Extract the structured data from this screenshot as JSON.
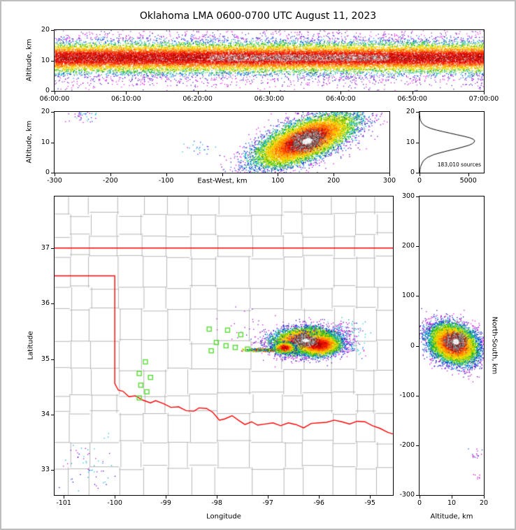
{
  "title": "Oklahoma LMA 0600-0700 UTC August 11, 2023",
  "axis_titles": {
    "altitude": "Altitude, km",
    "east_west": "East-West, km",
    "latitude": "Latitude",
    "longitude": "Longitude",
    "north_south": "North-South, km"
  },
  "annotations": {
    "sources": "183,010 sources"
  },
  "chart_data": {
    "type": "scatter",
    "title": "Oklahoma LMA 0600-0700 UTC August 11, 2023",
    "total_sources": 183010,
    "panels": {
      "time_height": {
        "kind": "density",
        "ylabel": "Altitude, km",
        "xlim": [
          0,
          3600
        ],
        "ylim": [
          0,
          20
        ],
        "xticks": {
          "values": [
            0,
            600,
            1200,
            1800,
            2400,
            3000,
            3600
          ],
          "labels": [
            "06:00:00",
            "06:10:00",
            "06:20:00",
            "06:30:00",
            "06:40:00",
            "06:50:00",
            "07:00:00"
          ]
        },
        "yticks": {
          "values": [
            0,
            10,
            20
          ],
          "labels": [
            "0",
            "10",
            "20"
          ]
        },
        "band": {
          "x0": 0,
          "x1": 3600,
          "cy": 11,
          "sy": 2.3,
          "fringe_sy": 4.2,
          "fringe_frac": 0.25,
          "n": 30000,
          "gray_t": [
            1300,
            2800
          ]
        }
      },
      "east_west_cross": {
        "kind": "density",
        "xlabel": "East-West, km",
        "ylabel": "Altitude, km",
        "xlim": [
          -300,
          300
        ],
        "ylim": [
          0,
          20
        ],
        "xticks": {
          "values": [
            -300,
            -200,
            -100,
            0,
            100,
            200,
            300
          ],
          "labels": [
            "-300",
            "-200",
            "-100",
            "",
            "100",
            "200",
            "300"
          ]
        },
        "yticks": {
          "values": [
            0,
            10,
            20
          ],
          "labels": [
            "0",
            "10",
            "20"
          ]
        },
        "blobs": [
          {
            "cx": 148,
            "cy": 10.8,
            "sx": 44,
            "sy": 4.3,
            "rho": 0.65,
            "n": 12000
          },
          {
            "cx": 152,
            "cy": 10.5,
            "sx": 13,
            "sy": 1.5,
            "rho": 0.3,
            "n": 1800,
            "kind": "gray"
          }
        ],
        "noise": [
          {
            "cx": -255,
            "cy": 18.5,
            "sx": 16,
            "sy": 0.8,
            "n": 30,
            "colors": [
              "#cc00cc",
              "#8800cc",
              "#0044ff",
              "#00cccc"
            ]
          },
          {
            "cx": -240,
            "cy": 19.6,
            "sx": 10,
            "sy": 0.3,
            "n": 10,
            "colors": [
              "#cc00cc",
              "#009fdd"
            ]
          },
          {
            "cx": -40,
            "cy": 8,
            "sx": 14,
            "sy": 1.3,
            "n": 22,
            "colors": [
              "#cc00cc",
              "#0044ff",
              "#00bbbb"
            ]
          },
          {
            "cx": 175,
            "cy": 19.3,
            "sx": 28,
            "sy": 0.5,
            "n": 16,
            "colors": [
              "#cc00cc",
              "#8800cc"
            ]
          }
        ]
      },
      "altitude_histogram": {
        "kind": "hist",
        "xlim": [
          0,
          6600
        ],
        "ylim": [
          0,
          20
        ],
        "xticks": {
          "values": [
            0,
            5000
          ],
          "labels": [
            "0",
            "5000"
          ]
        },
        "yticks": {
          "values": [
            0,
            10,
            20
          ],
          "labels": [
            "0",
            "10",
            "20"
          ]
        },
        "note": "183,010 sources",
        "profile": [
          [
            0,
            20
          ],
          [
            1,
            55
          ],
          [
            2,
            110
          ],
          [
            3,
            240
          ],
          [
            4,
            420
          ],
          [
            5,
            800
          ],
          [
            6,
            1500
          ],
          [
            7,
            2650
          ],
          [
            8,
            3950
          ],
          [
            9,
            5050
          ],
          [
            9.5,
            5400
          ],
          [
            10,
            5600
          ],
          [
            10.5,
            5660
          ],
          [
            11,
            5520
          ],
          [
            11.5,
            5150
          ],
          [
            12,
            4520
          ],
          [
            12.5,
            3820
          ],
          [
            13,
            3120
          ],
          [
            13.5,
            2420
          ],
          [
            14,
            1760
          ],
          [
            14.5,
            1210
          ],
          [
            15,
            810
          ],
          [
            15.5,
            520
          ],
          [
            16,
            330
          ],
          [
            16.5,
            210
          ],
          [
            17,
            130
          ],
          [
            17.5,
            80
          ],
          [
            18,
            45
          ],
          [
            19,
            12
          ],
          [
            20,
            3
          ]
        ]
      },
      "plan_view": {
        "kind": "map",
        "xlabel": "Longitude",
        "ylabel": "Latitude",
        "xlim": [
          -101.18,
          -94.55
        ],
        "ylim": [
          32.55,
          37.93
        ],
        "xticks": {
          "values": [
            -101,
            -100,
            -99,
            -98,
            -97,
            -96,
            -95
          ],
          "labels": [
            "-101",
            "-100",
            "-99",
            "-98",
            "-97",
            "-96",
            "-95"
          ]
        },
        "yticks": {
          "values": [
            33,
            34,
            35,
            36,
            37
          ],
          "labels": [
            "33",
            "34",
            "35",
            "36",
            "37"
          ]
        },
        "county_grid": {
          "col_width": 0.53,
          "row_height": 0.46,
          "jitter": 0.09,
          "color": "#b5b5b5"
        },
        "state_border_color": "#ff0000",
        "state_borders": [
          [
            [
              -101.18,
              37
            ],
            [
              -94.55,
              37
            ]
          ],
          [
            [
              -101.18,
              36.5
            ],
            [
              -100,
              36.5
            ],
            [
              -100,
              34.56
            ],
            [
              -99.93,
              34.44
            ],
            [
              -99.84,
              34.42
            ],
            [
              -99.72,
              34.32
            ],
            [
              -99.6,
              34.34
            ],
            [
              -99.45,
              34.26
            ],
            [
              -99.3,
              34.21
            ],
            [
              -99.2,
              34.25
            ],
            [
              -99.05,
              34.2
            ],
            [
              -98.9,
              34.13
            ],
            [
              -98.75,
              34.14
            ],
            [
              -98.6,
              34.07
            ],
            [
              -98.45,
              34.06
            ],
            [
              -98.35,
              34.12
            ],
            [
              -98.2,
              34.11
            ],
            [
              -98.08,
              34.04
            ],
            [
              -97.95,
              33.9
            ],
            [
              -97.85,
              33.92
            ],
            [
              -97.7,
              33.98
            ],
            [
              -97.58,
              33.9
            ],
            [
              -97.45,
              33.82
            ],
            [
              -97.32,
              33.87
            ],
            [
              -97.2,
              33.81
            ],
            [
              -97.05,
              33.83
            ],
            [
              -96.9,
              33.85
            ],
            [
              -96.75,
              33.8
            ],
            [
              -96.6,
              33.85
            ],
            [
              -96.45,
              33.82
            ],
            [
              -96.3,
              33.76
            ],
            [
              -96.15,
              33.84
            ],
            [
              -96.0,
              33.85
            ],
            [
              -95.85,
              33.86
            ],
            [
              -95.7,
              33.9
            ],
            [
              -95.55,
              33.87
            ],
            [
              -95.4,
              33.83
            ],
            [
              -95.25,
              33.88
            ],
            [
              -95.1,
              33.87
            ],
            [
              -94.95,
              33.8
            ],
            [
              -94.8,
              33.75
            ],
            [
              -94.65,
              33.68
            ],
            [
              -94.55,
              33.65
            ]
          ]
        ],
        "stations": {
          "color": "#55dd33",
          "size": 6,
          "points": [
            [
              -98.15,
              35.54
            ],
            [
              -98.01,
              35.3
            ],
            [
              -97.79,
              35.52
            ],
            [
              -97.82,
              35.24
            ],
            [
              -97.64,
              35.21
            ],
            [
              -97.53,
              35.44
            ],
            [
              -98.11,
              35.15
            ],
            [
              -97.4,
              35.18
            ],
            [
              -99.4,
              34.95
            ],
            [
              -99.52,
              34.74
            ],
            [
              -99.3,
              34.67
            ],
            [
              -99.49,
              34.53
            ],
            [
              -99.37,
              34.41
            ],
            [
              -99.52,
              34.3
            ]
          ]
        },
        "blobs": [
          {
            "cx": -96.28,
            "cy": 35.33,
            "sx": 0.3,
            "sy": 0.115,
            "rho": 0.1,
            "n": 9000
          },
          {
            "cx": -96.02,
            "cy": 35.27,
            "sx": 0.22,
            "sy": 0.1,
            "rho": 0,
            "n": 4000
          },
          {
            "cx": -96.68,
            "cy": 35.21,
            "sx": 0.1,
            "sy": 0.05,
            "rho": 0,
            "n": 900
          },
          {
            "cx": -96.27,
            "cy": 35.34,
            "sx": 0.085,
            "sy": 0.042,
            "n": 1400,
            "kind": "gray"
          },
          {
            "cx": -97.12,
            "cy": 35.17,
            "sx": 0.17,
            "sy": 0.013,
            "n": 500,
            "kind": "line",
            "colors": [
              "#00c400",
              "#00cccc",
              "#7ccf00",
              "#e00000",
              "#ffd700",
              "#0066ff"
            ]
          }
        ],
        "noise": [
          {
            "cx": -95.52,
            "cy": 35.55,
            "sx": 0.2,
            "sy": 0.09,
            "n": 90,
            "colors": [
              "#cc00cc",
              "#8800cc",
              "#009fdd",
              "#00cccc"
            ]
          },
          {
            "cx": -95.3,
            "cy": 35.2,
            "sx": 0.12,
            "sy": 0.1,
            "n": 45,
            "colors": [
              "#cc00cc",
              "#0044ff",
              "#00cccc"
            ]
          },
          {
            "cx": -100.5,
            "cy": 33.05,
            "sx": 0.28,
            "sy": 0.33,
            "n": 60,
            "colors": [
              "#cc00cc",
              "#009fdd",
              "#00cccc",
              "#0000e6",
              "#8800cc"
            ]
          },
          {
            "cx": -97.55,
            "cy": 35.6,
            "sx": 0.3,
            "sy": 0.15,
            "n": 25,
            "colors": [
              "#cc00cc",
              "#8800cc"
            ]
          }
        ]
      },
      "north_south_cross": {
        "kind": "density",
        "xlabel": "Altitude, km",
        "ylabel": "North-South, km",
        "xlim": [
          0,
          20
        ],
        "ylim": [
          -300,
          300
        ],
        "xticks": {
          "values": [
            0,
            10,
            20
          ],
          "labels": [
            "0",
            "10",
            "20"
          ]
        },
        "yticks": {
          "values": [
            -300,
            -200,
            -100,
            0,
            100,
            200,
            300
          ],
          "labels": [
            "-300",
            "-200",
            "-100",
            "0",
            "100",
            "200",
            "300"
          ]
        },
        "blobs": [
          {
            "cx": 10.5,
            "cy": 5,
            "sx": 3.6,
            "sy": 19,
            "rho": -0.25,
            "n": 11000
          },
          {
            "cx": 11.2,
            "cy": 9,
            "sx": 1.4,
            "sy": 8,
            "rho": 0,
            "n": 1500,
            "kind": "gray"
          }
        ],
        "noise": [
          {
            "cx": 17.5,
            "cy": -218,
            "sx": 1.2,
            "sy": 6,
            "n": 16,
            "colors": [
              "#cc00cc",
              "#8800cc",
              "#0044ff"
            ]
          },
          {
            "cx": 18,
            "cy": -260,
            "sx": 1.0,
            "sy": 4,
            "n": 8,
            "colors": [
              "#cc00cc"
            ]
          }
        ]
      }
    }
  }
}
